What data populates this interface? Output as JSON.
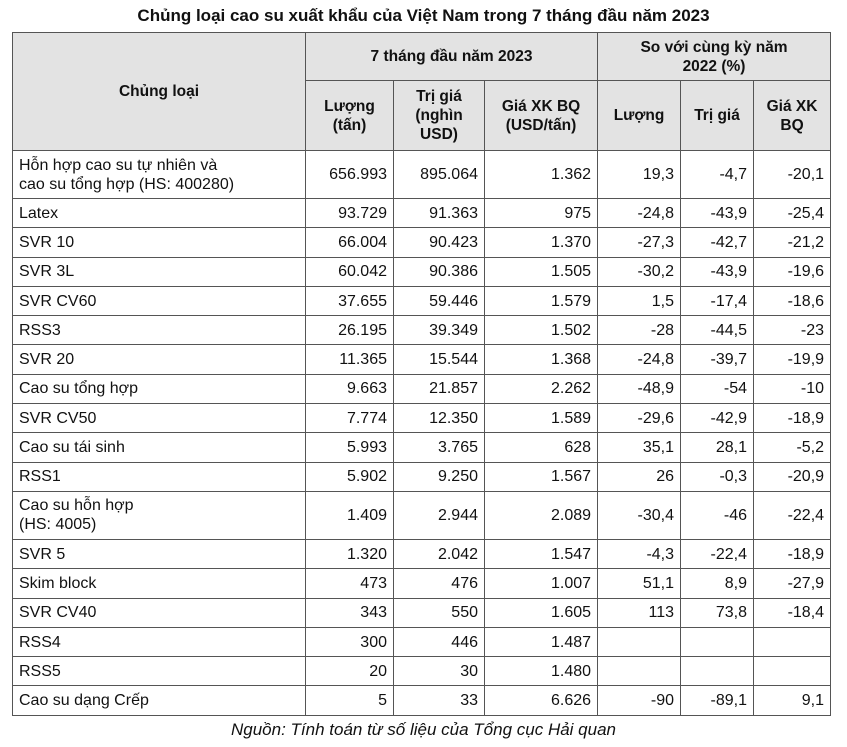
{
  "title": "Chủng loại cao su xuất khẩu của Việt Nam trong 7 tháng đầu năm 2023",
  "table": {
    "header": [
      "Chủng loại"
    ],
    "groups": [
      "7 tháng đầu năm 2023",
      "So với cùng kỳ năm 2022 (%)"
    ],
    "subheader": [
      "Lượng (tấn)",
      "Trị giá (nghìn USD)",
      "Giá XK BQ (USD/tấn)",
      "Lượng",
      "Trị giá",
      "Giá XK BQ"
    ],
    "rows": [
      [
        "Hỗn hợp cao su tự nhiên và\ncao su tổng hợp (HS: 400280)",
        "656.993",
        "895.064",
        "1.362",
        "19,3",
        "-4,7",
        "-20,1"
      ],
      [
        "Latex",
        "93.729",
        "91.363",
        "975",
        "-24,8",
        "-43,9",
        "-25,4"
      ],
      [
        "SVR 10",
        "66.004",
        "90.423",
        "1.370",
        "-27,3",
        "-42,7",
        "-21,2"
      ],
      [
        "SVR 3L",
        "60.042",
        "90.386",
        "1.505",
        "-30,2",
        "-43,9",
        "-19,6"
      ],
      [
        "SVR CV60",
        "37.655",
        "59.446",
        "1.579",
        "1,5",
        "-17,4",
        "-18,6"
      ],
      [
        "RSS3",
        "26.195",
        "39.349",
        "1.502",
        "-28",
        "-44,5",
        "-23"
      ],
      [
        "SVR 20",
        "11.365",
        "15.544",
        "1.368",
        "-24,8",
        "-39,7",
        "-19,9"
      ],
      [
        "Cao su tổng hợp",
        "9.663",
        "21.857",
        "2.262",
        "-48,9",
        "-54",
        "-10"
      ],
      [
        "SVR CV50",
        "7.774",
        "12.350",
        "1.589",
        "-29,6",
        "-42,9",
        "-18,9"
      ],
      [
        "Cao su tái sinh",
        "5.993",
        "3.765",
        "628",
        "35,1",
        "28,1",
        "-5,2"
      ],
      [
        "RSS1",
        "5.902",
        "9.250",
        "1.567",
        "26",
        "-0,3",
        "-20,9"
      ],
      [
        "Cao su hỗn hợp\n(HS: 4005)",
        "1.409",
        "2.944",
        "2.089",
        "-30,4",
        "-46",
        "-22,4"
      ],
      [
        "SVR 5",
        "1.320",
        "2.042",
        "1.547",
        "-4,3",
        "-22,4",
        "-18,9"
      ],
      [
        "Skim block",
        "473",
        "476",
        "1.007",
        "51,1",
        "8,9",
        "-27,9"
      ],
      [
        "SVR CV40",
        "343",
        "550",
        "1.605",
        "113",
        "73,8",
        "-18,4"
      ],
      [
        "RSS4",
        "300",
        "446",
        "1.487"
      ],
      [
        "RSS5",
        "20",
        "30",
        "1.480"
      ],
      [
        "Cao su dạng Crếp",
        "5",
        "33",
        "6.626",
        "-90",
        "-89,1",
        "9,1"
      ]
    ]
  },
  "source": "Nguồn: Tính toán từ số liệu của Tổng cục Hải quan"
}
